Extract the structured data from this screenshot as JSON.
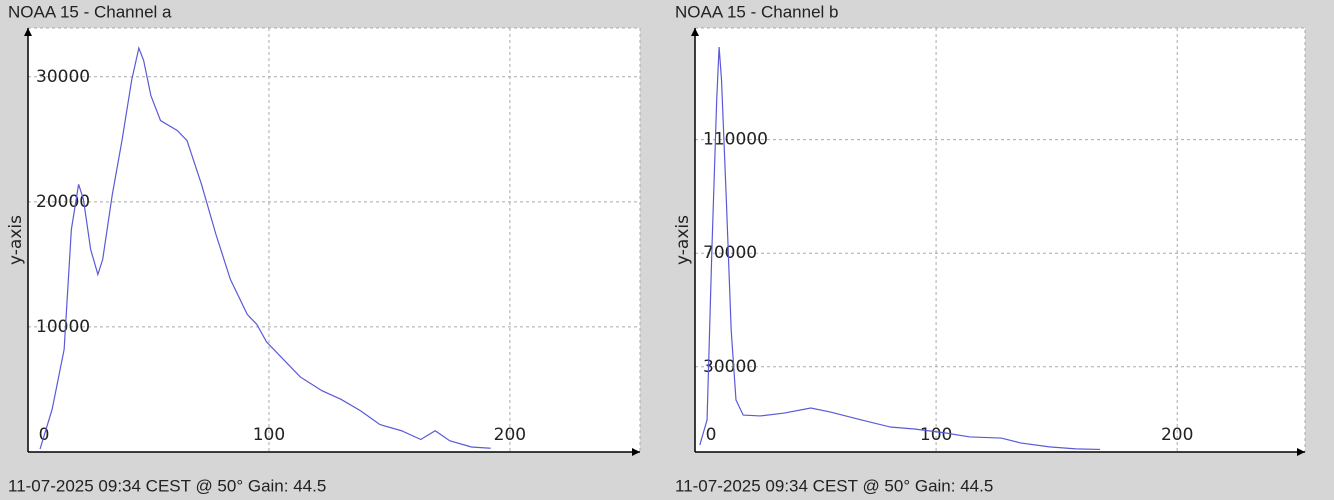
{
  "chart_data": [
    {
      "type": "line",
      "title": "NOAA 15 - Channel a",
      "y_label": "y-axis",
      "caption": "11-07-2025 09:34 CEST @ 50° Gain: 44.5",
      "x": [
        5,
        10,
        15,
        18,
        20,
        21,
        23,
        26,
        29,
        31,
        35,
        39,
        43,
        46,
        48,
        51,
        55,
        62,
        66,
        72,
        78,
        84,
        91,
        95,
        99,
        105,
        113,
        122,
        130,
        138,
        146,
        155,
        163,
        169,
        175,
        184,
        192
      ],
      "values": [
        240,
        3400,
        8200,
        17800,
        20200,
        21400,
        20200,
        16200,
        14200,
        15400,
        20600,
        24900,
        29700,
        32300,
        31300,
        28500,
        26500,
        25700,
        24900,
        21400,
        17400,
        13800,
        11000,
        10200,
        8800,
        7600,
        6000,
        4900,
        4200,
        3300,
        2200,
        1700,
        1000,
        1700,
        900,
        400,
        300
      ],
      "color": "#5a5ad8",
      "xlim": [
        0,
        254
      ],
      "ylim": [
        0,
        33900
      ],
      "xticks": [
        0,
        100,
        200
      ],
      "yticks": [
        10000,
        20000,
        30000
      ],
      "grid": true
    },
    {
      "type": "line",
      "title": "NOAA 15 - Channel b",
      "y_label": "y-axis",
      "caption": "11-07-2025 09:34 CEST @ 50° Gain: 44.5",
      "x": [
        2,
        5,
        7,
        9,
        10,
        11,
        13,
        15,
        17,
        20,
        27,
        37,
        48,
        56,
        69,
        81,
        91,
        104,
        114,
        127,
        135,
        147,
        158,
        168
      ],
      "values": [
        2500,
        11300,
        71100,
        124000,
        142600,
        131000,
        88700,
        43000,
        18300,
        13000,
        12700,
        13700,
        15500,
        14100,
        11300,
        8800,
        8100,
        6700,
        5300,
        4900,
        3200,
        1800,
        1100,
        900
      ],
      "color": "#5a5ad8",
      "xlim": [
        0,
        253
      ],
      "ylim": [
        0,
        149300
      ],
      "xticks": [
        0,
        100,
        200
      ],
      "yticks": [
        30000,
        70000,
        110000
      ],
      "grid": true
    }
  ]
}
